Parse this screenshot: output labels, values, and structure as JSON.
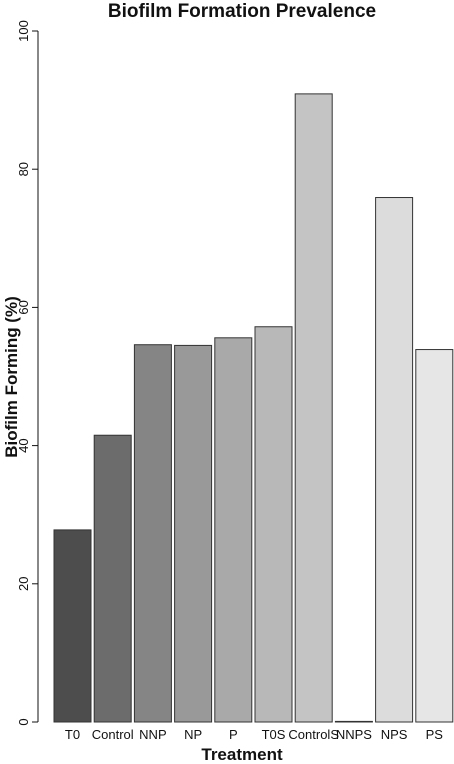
{
  "chart_data": {
    "type": "bar",
    "title": "Biofilm Formation Prevalence",
    "xlabel": "Treatment",
    "ylabel": "Biofilm Forming (%)",
    "ylim": [
      0,
      100
    ],
    "yticks": [
      0,
      20,
      40,
      60,
      80,
      100
    ],
    "categories": [
      "T0",
      "Control",
      "NNP",
      "NP",
      "P",
      "T0S",
      "ControlS",
      "NNPS",
      "NPS",
      "PS"
    ],
    "values": [
      27.8,
      41.5,
      54.6,
      54.5,
      55.6,
      57.2,
      90.9,
      0,
      75.9,
      53.9
    ],
    "colors": [
      "#4d4d4d",
      "#6c6c6c",
      "#858585",
      "#999999",
      "#a9a9a9",
      "#b8b8b8",
      "#c4c4c4",
      "#d0d0d0",
      "#dcdcdc",
      "#e6e6e6"
    ],
    "grid": false,
    "legend": "none"
  }
}
